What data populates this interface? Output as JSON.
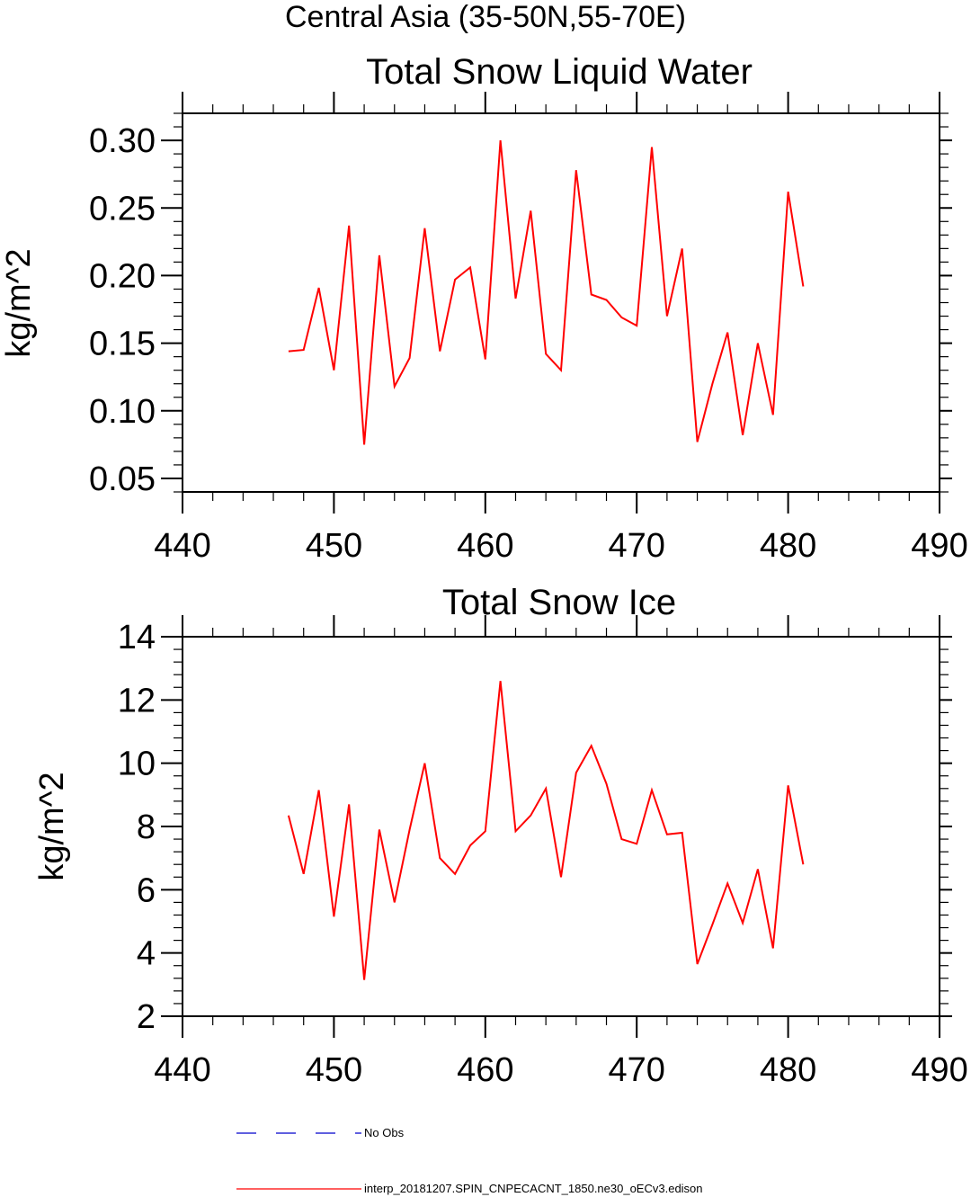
{
  "figure": {
    "suptitle": "Central Asia (35-50N,55-70E)"
  },
  "chart_data": [
    {
      "type": "line",
      "title": "Total Snow Liquid Water",
      "xlabel": "",
      "ylabel": "kg/m^2",
      "xlim": [
        440,
        490
      ],
      "ylim": [
        0.04,
        0.32
      ],
      "xticks": [
        440,
        450,
        460,
        470,
        480,
        490
      ],
      "xtick_labels": [
        "440",
        "450",
        "460",
        "470",
        "480",
        "490"
      ],
      "yticks": [
        0.05,
        0.1,
        0.15,
        0.2,
        0.25,
        0.3
      ],
      "ytick_labels": [
        "0.05",
        "0.10",
        "0.15",
        "0.20",
        "0.25",
        "0.30"
      ],
      "grid": false,
      "x": [
        447,
        448,
        449,
        450,
        451,
        452,
        453,
        454,
        455,
        456,
        457,
        458,
        459,
        460,
        461,
        462,
        463,
        464,
        465,
        466,
        467,
        468,
        469,
        470,
        471,
        472,
        473,
        474,
        475,
        476,
        477,
        478,
        479,
        480,
        481
      ],
      "series": [
        {
          "name": "interp_20181207.SPIN_CNPECACNT_1850.ne30_oECv3.edison",
          "color": "#ff0000",
          "values": [
            0.144,
            0.145,
            0.191,
            0.13,
            0.237,
            0.075,
            0.215,
            0.118,
            0.139,
            0.235,
            0.144,
            0.197,
            0.206,
            0.138,
            0.3,
            0.183,
            0.248,
            0.142,
            0.13,
            0.278,
            0.186,
            0.182,
            0.169,
            0.163,
            0.295,
            0.17,
            0.22,
            0.077,
            0.12,
            0.158,
            0.082,
            0.15,
            0.097,
            0.262,
            0.192
          ]
        }
      ]
    },
    {
      "type": "line",
      "title": "Total Snow Ice",
      "xlabel": "",
      "ylabel": "kg/m^2",
      "xlim": [
        440,
        490
      ],
      "ylim": [
        2,
        14
      ],
      "xticks": [
        440,
        450,
        460,
        470,
        480,
        490
      ],
      "xtick_labels": [
        "440",
        "450",
        "460",
        "470",
        "480",
        "490"
      ],
      "yticks": [
        2,
        4,
        6,
        8,
        10,
        12,
        14
      ],
      "ytick_labels": [
        "2",
        "4",
        "6",
        "8",
        "10",
        "12",
        "14"
      ],
      "grid": false,
      "x": [
        447,
        448,
        449,
        450,
        451,
        452,
        453,
        454,
        455,
        456,
        457,
        458,
        459,
        460,
        461,
        462,
        463,
        464,
        465,
        466,
        467,
        468,
        469,
        470,
        471,
        472,
        473,
        474,
        475,
        476,
        477,
        478,
        479,
        480,
        481
      ],
      "series": [
        {
          "name": "interp_20181207.SPIN_CNPECACNT_1850.ne30_oECv3.edison",
          "color": "#ff0000",
          "values": [
            8.35,
            6.5,
            9.15,
            5.15,
            8.7,
            3.15,
            7.9,
            5.6,
            7.9,
            10.0,
            7.0,
            6.5,
            7.4,
            7.85,
            12.6,
            7.85,
            8.35,
            9.2,
            6.4,
            9.7,
            10.55,
            9.35,
            7.6,
            7.45,
            9.15,
            7.75,
            7.8,
            3.65,
            4.9,
            6.2,
            4.95,
            6.65,
            4.15,
            9.3,
            6.8
          ]
        }
      ]
    }
  ],
  "legend": {
    "placement": "bottom-left",
    "entries": [
      {
        "label": "No Obs",
        "color": "#0000cc",
        "style": "dashed"
      },
      {
        "label": "interp_20181207.SPIN_CNPECACNT_1850.ne30_oECv3.edison",
        "color": "#ff0000",
        "style": "solid"
      }
    ]
  }
}
